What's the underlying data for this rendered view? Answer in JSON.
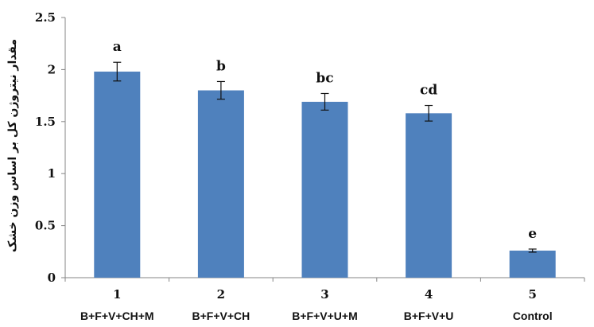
{
  "chart_data": {
    "type": "bar",
    "title": "",
    "xlabel": "",
    "ylabel": "مقدار نیتروژن کل بر اساس وزن خشک",
    "ylim": [
      0,
      2.5
    ],
    "yticks": [
      0,
      0.5,
      1,
      1.5,
      2,
      2.5
    ],
    "ytick_labels": [
      "0",
      "0.5",
      "1",
      "1.5",
      "2",
      "2.5"
    ],
    "grid": false,
    "legend": "none",
    "bar_color": "#4f81bd",
    "categories": [
      "1",
      "2",
      "3",
      "4",
      "5"
    ],
    "category_descriptions": [
      "B+F+V+CH+M",
      "B+F+V+CH",
      "B+F+V+U+M",
      "B+F+V+U",
      "Control"
    ],
    "values": [
      1.98,
      1.8,
      1.69,
      1.58,
      0.26
    ],
    "error": [
      0.09,
      0.085,
      0.08,
      0.075,
      0.015
    ],
    "significance_letters": [
      "a",
      "b",
      "bc",
      "cd",
      "e"
    ]
  }
}
